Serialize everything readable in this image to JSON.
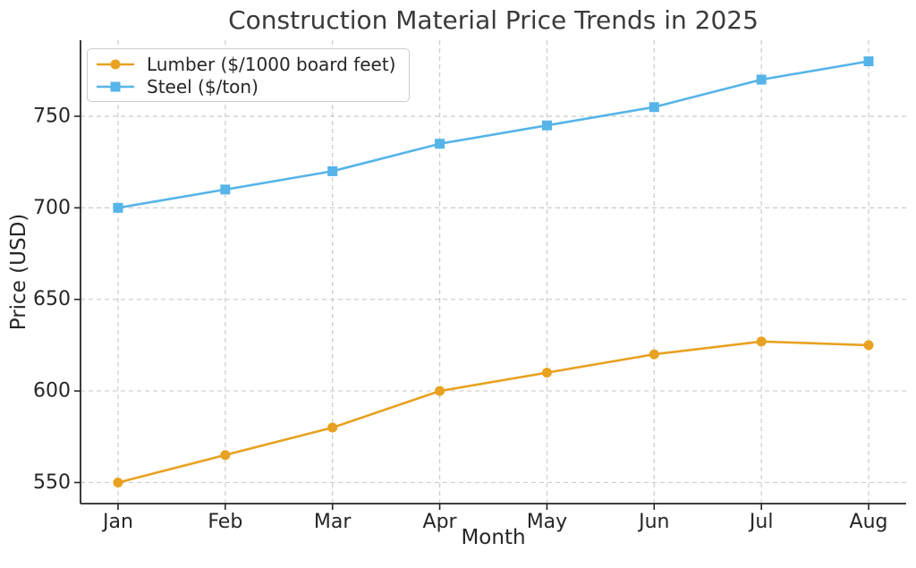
{
  "chart_data": {
    "type": "line",
    "title": "Construction Material Price Trends in 2025",
    "xlabel": "Month",
    "ylabel": "Price (USD)",
    "categories": [
      "Jan",
      "Feb",
      "Mar",
      "Apr",
      "May",
      "Jun",
      "Jul",
      "Aug"
    ],
    "series": [
      {
        "name": "Lumber ($/1000 board feet)",
        "color": "#E8A120",
        "marker": "circle",
        "values": [
          550,
          565,
          580,
          600,
          610,
          620,
          627,
          625
        ]
      },
      {
        "name": "Steel ($/ton)",
        "color": "#56B4E9",
        "marker": "square",
        "values": [
          700,
          710,
          720,
          735,
          745,
          755,
          770,
          780
        ]
      }
    ],
    "yticks": [
      550,
      600,
      650,
      700,
      750
    ],
    "ylim": [
      538.5,
      791.5
    ],
    "grid": "both, dashed",
    "legend_position": "upper-left",
    "style": {
      "grid_color": "#cccccc",
      "axis_color": "#262626",
      "tick_label_color": "#262626",
      "title_color": "#3a3a3a",
      "background": "#ffffff"
    }
  }
}
